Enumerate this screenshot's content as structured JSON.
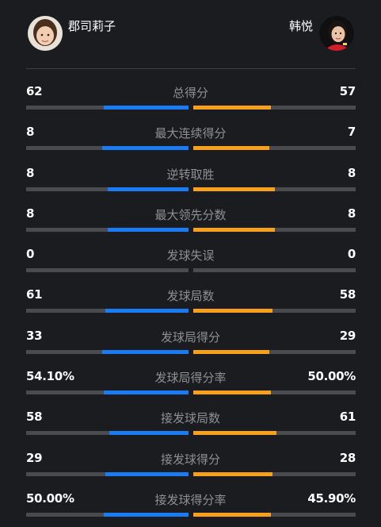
{
  "players": {
    "left": {
      "name": "郡司莉子",
      "avatar": "player-photo-left"
    },
    "right": {
      "name": "韩悦",
      "avatar": "player-photo-right"
    }
  },
  "colors": {
    "left_bar": "#1a7cf5",
    "right_bar": "#f7a019",
    "track": "#4a4b50"
  },
  "stats": [
    {
      "label": "总得分",
      "left": "62",
      "right": "57",
      "left_share": 0.52,
      "right_share": 0.48
    },
    {
      "label": "最大连续得分",
      "left": "8",
      "right": "7",
      "left_share": 0.53,
      "right_share": 0.47
    },
    {
      "label": "逆转取胜",
      "left": "8",
      "right": "8",
      "left_share": 0.5,
      "right_share": 0.5
    },
    {
      "label": "最大领先分数",
      "left": "8",
      "right": "8",
      "left_share": 0.5,
      "right_share": 0.5
    },
    {
      "label": "发球失误",
      "left": "0",
      "right": "0",
      "left_share": 0,
      "right_share": 0
    },
    {
      "label": "发球局数",
      "left": "61",
      "right": "58",
      "left_share": 0.51,
      "right_share": 0.49
    },
    {
      "label": "发球局得分",
      "left": "33",
      "right": "29",
      "left_share": 0.53,
      "right_share": 0.47
    },
    {
      "label": "发球局得分率",
      "left": "54.10%",
      "right": "50.00%",
      "left_share": 0.52,
      "right_share": 0.48
    },
    {
      "label": "接发球局数",
      "left": "58",
      "right": "61",
      "left_share": 0.49,
      "right_share": 0.51
    },
    {
      "label": "接发球得分",
      "left": "29",
      "right": "28",
      "left_share": 0.51,
      "right_share": 0.49
    },
    {
      "label": "接发球得分率",
      "left": "50.00%",
      "right": "45.90%",
      "left_share": 0.52,
      "right_share": 0.48
    }
  ]
}
